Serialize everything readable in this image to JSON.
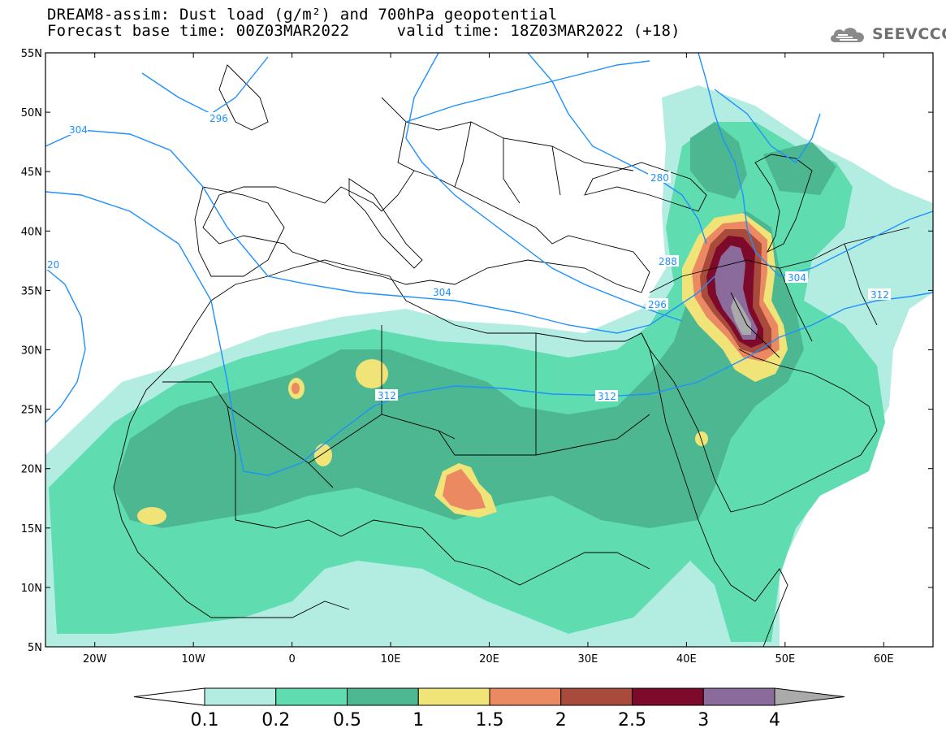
{
  "header": {
    "line1": "DREAM8-assim: Dust load (g/m²) and 700hPa geopotential",
    "line2": "Forecast base time: 00Z03MAR2022     valid time: 18Z03MAR2022 (+18)",
    "logo_text": "SEEVCCC",
    "logo_icon": "cloud-logo-icon"
  },
  "map": {
    "lat_labels": [
      "55N",
      "50N",
      "45N",
      "40N",
      "35N",
      "30N",
      "25N",
      "20N",
      "15N",
      "10N",
      "5N"
    ],
    "lon_labels": [
      "20W",
      "10W",
      "0",
      "10E",
      "20E",
      "30E",
      "40E",
      "50E",
      "60E"
    ],
    "lon_range": [
      -25,
      65
    ],
    "lat_range": [
      5,
      55
    ],
    "contour_color": "#1e90ff",
    "contour_labels": [
      "296",
      "304",
      "20",
      "304",
      "312",
      "312",
      "280",
      "288",
      "296",
      "304",
      "312"
    ]
  },
  "colorbar": {
    "labels": [
      "0.1",
      "0.2",
      "0.5",
      "1",
      "1.5",
      "2",
      "2.5",
      "3",
      "4"
    ],
    "colors": [
      "#b3ede2",
      "#5fdcb0",
      "#4db791",
      "#f0e478",
      "#eb8a62",
      "#a84a3c",
      "#7d0a2a",
      "#8b6b9c",
      "#aaaaaa"
    ]
  }
}
